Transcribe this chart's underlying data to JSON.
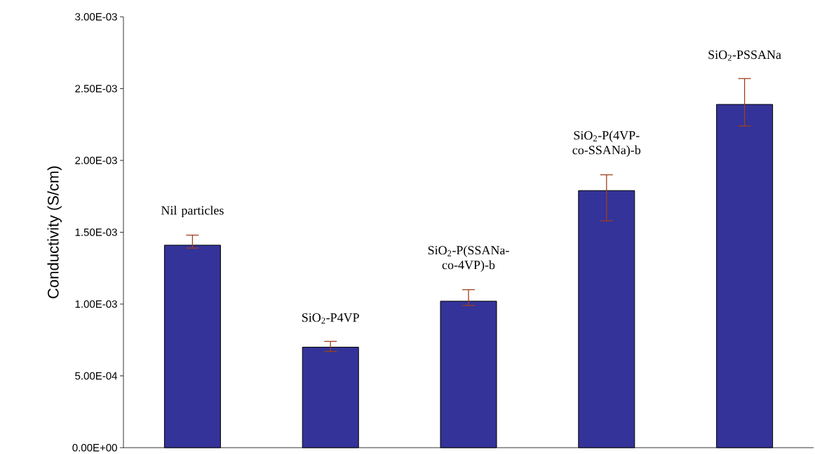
{
  "chart_data": {
    "type": "bar",
    "ylabel": "Conductivity (S/cm)",
    "categories": [
      "Nil particles",
      "SiO$_{2}$-P4VP",
      "SiO$_{2}$-P(SSANa-co-4VP)-b",
      "SiO$_{2}$-P(4VP-co-SSANa)-b",
      "SiO$_{2}$-PSSANa"
    ],
    "values": [
      0.00141,
      0.0007,
      0.00102,
      0.00179,
      0.00239
    ],
    "errors": [
      [
        0.00139,
        0.00148
      ],
      [
        0.00067,
        0.00074
      ],
      [
        0.00099,
        0.0011
      ],
      [
        0.00158,
        0.0019
      ],
      [
        0.00224,
        0.00257
      ]
    ],
    "color": "#333399",
    "ylim": [
      0,
      0.003
    ],
    "yticks": [
      {
        "value": 0,
        "label": "0.00E+00"
      },
      {
        "value": 0.0005,
        "label": "5.00E-04"
      },
      {
        "value": 0.001,
        "label": "1.00E-03"
      },
      {
        "value": 0.0015,
        "label": "1.50E-03"
      },
      {
        "value": 0.002,
        "label": "2.00E-03"
      },
      {
        "value": 0.0025,
        "label": "2.50E-03"
      },
      {
        "value": 0.003,
        "label": "3.00E-03"
      }
    ],
    "grid": false
  }
}
